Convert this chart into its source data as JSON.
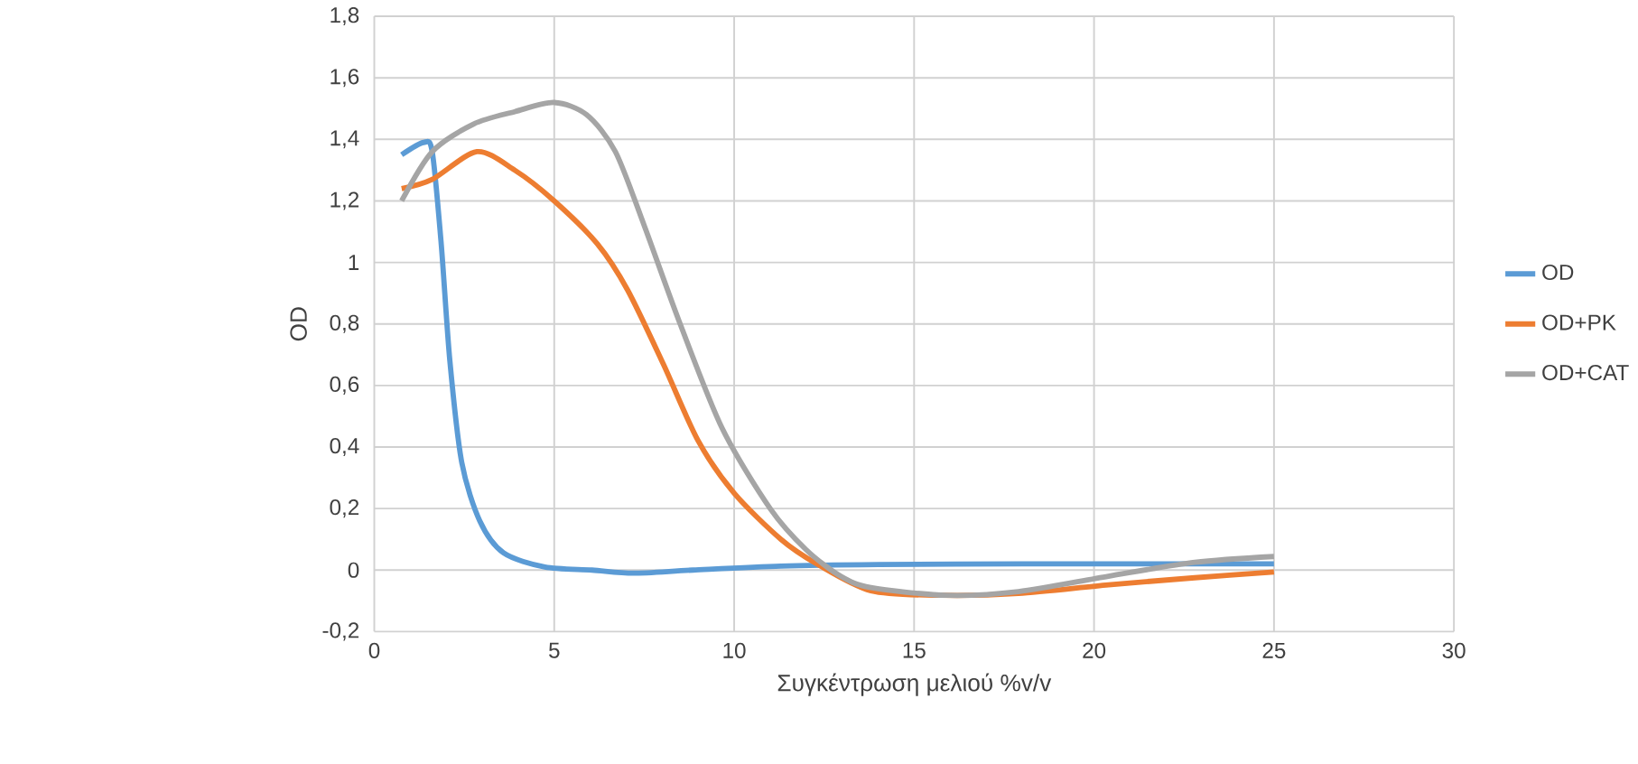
{
  "chart_data": {
    "type": "line",
    "xlabel": "Συγκέντρωση μελιού %v/v",
    "ylabel": "OD",
    "series": [
      {
        "name": "OD",
        "color": "#5b9bd5",
        "x": [
          0.76,
          1.37,
          1.61,
          1.86,
          2.1,
          2.43,
          2.93,
          3.59,
          4.74,
          6.05,
          7.2,
          8.85,
          11.3,
          14,
          18,
          22,
          25
        ],
        "values": [
          1.35,
          1.39,
          1.36,
          1.06,
          0.68,
          0.35,
          0.16,
          0.056,
          0.01,
          0.0,
          -0.01,
          0.0,
          0.013,
          0.018,
          0.02,
          0.02,
          0.02
        ]
      },
      {
        "name": "OD+PK",
        "color": "#ed7d31",
        "x": [
          0.76,
          1.61,
          2.85,
          3.9,
          5,
          6.2,
          7.04,
          8.03,
          9.0,
          10,
          11.3,
          12.3,
          13.8,
          15.75,
          17.9,
          20.4,
          22.8,
          25
        ],
        "values": [
          1.24,
          1.27,
          1.36,
          1.3,
          1.2,
          1.06,
          0.91,
          0.67,
          0.42,
          0.25,
          0.1,
          0.02,
          -0.067,
          -0.082,
          -0.076,
          -0.048,
          -0.025,
          -0.006
        ]
      },
      {
        "name": "OD+CAT",
        "color": "#a5a5a5",
        "x": [
          0.76,
          1.61,
          2.76,
          3.9,
          5,
          5.9,
          6.7,
          7.5,
          8.5,
          9.67,
          11,
          12,
          12.96,
          13.8,
          15.9,
          17.9,
          20.4,
          22.8,
          25
        ],
        "values": [
          1.2,
          1.36,
          1.45,
          1.49,
          1.52,
          1.48,
          1.36,
          1.12,
          0.8,
          0.46,
          0.2,
          0.066,
          -0.02,
          -0.057,
          -0.082,
          -0.07,
          -0.02,
          0.025,
          0.044
        ]
      }
    ],
    "xlim": [
      0,
      30
    ],
    "xticks": [
      0,
      5,
      10,
      15,
      20,
      25,
      30
    ],
    "ylim": [
      -0.2,
      1.8
    ],
    "yticks": [
      {
        "value": -0.2,
        "label": "-0,2"
      },
      0,
      {
        "value": 0.2,
        "label": "0,2"
      },
      {
        "value": 0.4,
        "label": "0,4"
      },
      {
        "value": 0.6,
        "label": "0,6"
      },
      {
        "value": 0.8,
        "label": "0,8"
      },
      1,
      {
        "value": 1.2,
        "label": "1,2"
      },
      {
        "value": 1.4,
        "label": "1,4"
      },
      {
        "value": 1.6,
        "label": "1,6"
      },
      {
        "value": 1.8,
        "label": "1,8"
      }
    ],
    "grid": true,
    "legend": "right",
    "marker": "none",
    "line_style": "solid"
  }
}
